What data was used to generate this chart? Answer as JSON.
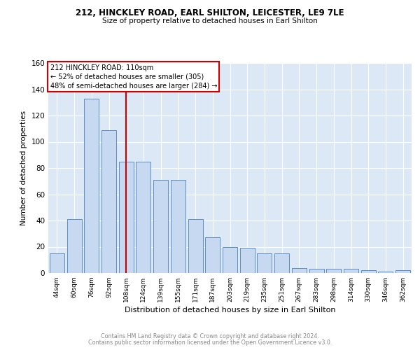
{
  "title1": "212, HINCKLEY ROAD, EARL SHILTON, LEICESTER, LE9 7LE",
  "title2": "Size of property relative to detached houses in Earl Shilton",
  "xlabel": "Distribution of detached houses by size in Earl Shilton",
  "ylabel": "Number of detached properties",
  "categories": [
    "44sqm",
    "60sqm",
    "76sqm",
    "92sqm",
    "108sqm",
    "124sqm",
    "139sqm",
    "155sqm",
    "171sqm",
    "187sqm",
    "203sqm",
    "219sqm",
    "235sqm",
    "251sqm",
    "267sqm",
    "283sqm",
    "298sqm",
    "314sqm",
    "330sqm",
    "346sqm",
    "362sqm"
  ],
  "values": [
    15,
    41,
    133,
    109,
    85,
    85,
    71,
    71,
    41,
    27,
    20,
    19,
    15,
    15,
    4,
    3,
    3,
    3,
    2,
    1,
    2
  ],
  "bar_color": "#c6d9f0",
  "bar_edge_color": "#5b8dc8",
  "highlight_x": "108sqm",
  "highlight_color": "#cc0000",
  "annotation_line1": "212 HINCKLEY ROAD: 110sqm",
  "annotation_line2": "← 52% of detached houses are smaller (305)",
  "annotation_line3": "48% of semi-detached houses are larger (284) →",
  "annotation_box_color": "#cc0000",
  "ylim": [
    0,
    160
  ],
  "yticks": [
    0,
    20,
    40,
    60,
    80,
    100,
    120,
    140,
    160
  ],
  "bg_color": "#dce8f5",
  "footer1": "Contains HM Land Registry data © Crown copyright and database right 2024.",
  "footer2": "Contains public sector information licensed under the Open Government Licence v3.0."
}
